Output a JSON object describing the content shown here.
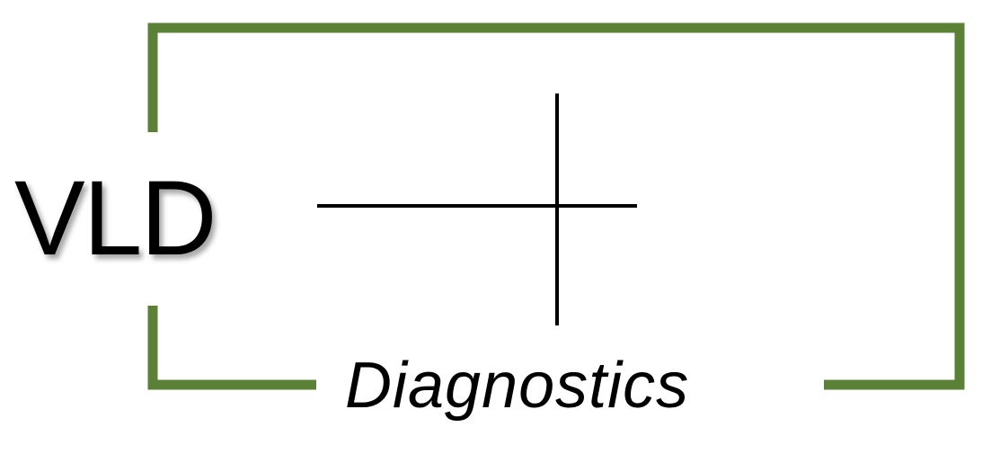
{
  "logo": {
    "brand": "VLD",
    "subtitle": "Diagnostics"
  },
  "colors": {
    "frame": "#5b8137",
    "crosshair": "#000000",
    "text": "#000000",
    "background": "#ffffff"
  },
  "icons": {
    "crosshair": "crosshair-icon"
  }
}
